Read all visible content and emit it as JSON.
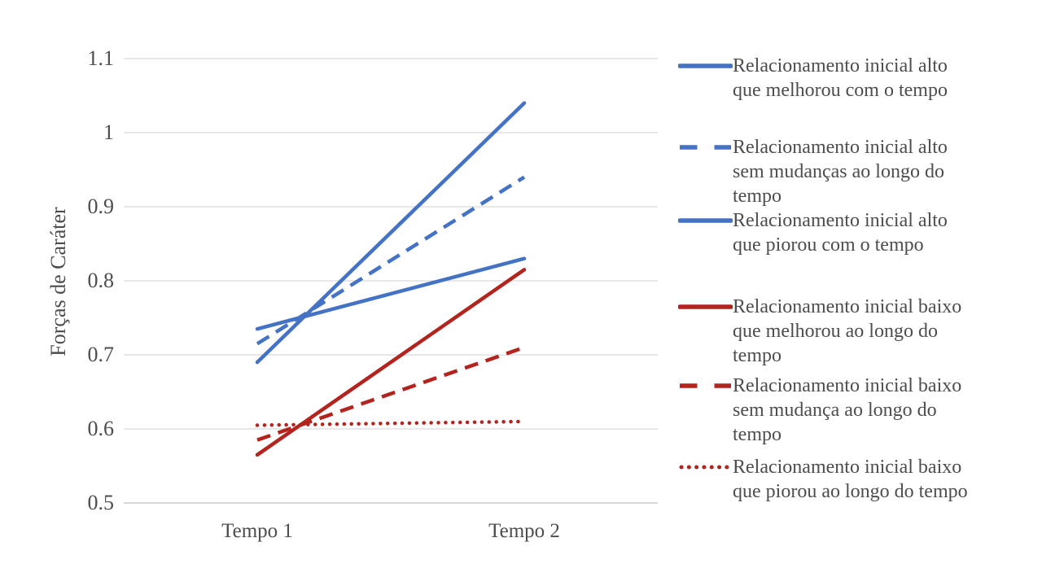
{
  "figure": {
    "background": "#ffffff",
    "text_color": "#4d4d4d",
    "gridline_color": "#d9d9d9",
    "axis_line_color": "#c9c9c9"
  },
  "chart_data": {
    "type": "line",
    "title": "",
    "xlabel": "",
    "ylabel": "Forças de Caráter",
    "categories": [
      "Tempo 1",
      "Tempo 2"
    ],
    "ylim": [
      0.5,
      1.1
    ],
    "y_ticks": [
      1.1,
      1.0,
      0.9,
      0.8,
      0.7,
      0.6,
      0.5
    ],
    "y_tick_labels": [
      "1.1",
      "1",
      "0.9",
      "0.8",
      "0.7",
      "0.6",
      "0.5"
    ],
    "grid": true,
    "legend_position": "right",
    "series": [
      {
        "name": "Relacionamento inicial alto que melhorou com o tempo",
        "name_lines": [
          "Relacionamento inicial alto",
          "que melhorou com o tempo"
        ],
        "color": "#4472c4",
        "style": "solid",
        "values": [
          0.69,
          1.04
        ]
      },
      {
        "name": "Relacionamento inicial alto sem mudanças ao longo do tempo",
        "name_lines": [
          "Relacionamento inicial alto",
          "sem mudanças ao longo do",
          "tempo"
        ],
        "color": "#4472c4",
        "style": "dashed",
        "values": [
          0.715,
          0.94
        ]
      },
      {
        "name": "Relacionamento inicial alto que piorou com o tempo",
        "name_lines": [
          "Relacionamento inicial alto",
          "que piorou com o tempo"
        ],
        "color": "#4472c4",
        "style": "solid",
        "values": [
          0.735,
          0.83
        ]
      },
      {
        "name": "Relacionamento inicial baixo que melhorou ao longo do tempo",
        "name_lines": [
          "Relacionamento inicial baixo",
          "que melhorou ao longo do",
          "tempo"
        ],
        "color": "#b3241f",
        "style": "solid",
        "values": [
          0.565,
          0.815
        ]
      },
      {
        "name": "Relacionamento inicial baixo sem mudança ao longo do tempo",
        "name_lines": [
          "Relacionamento inicial baixo",
          "sem mudança ao longo do",
          "tempo"
        ],
        "color": "#b3241f",
        "style": "dashed",
        "values": [
          0.585,
          0.71
        ]
      },
      {
        "name": "Relacionamento inicial baixo que piorou ao longo do tempo",
        "name_lines": [
          "Relacionamento inicial baixo",
          "que piorou ao longo do tempo"
        ],
        "color": "#b3241f",
        "style": "dotted",
        "values": [
          0.605,
          0.61
        ]
      }
    ]
  }
}
